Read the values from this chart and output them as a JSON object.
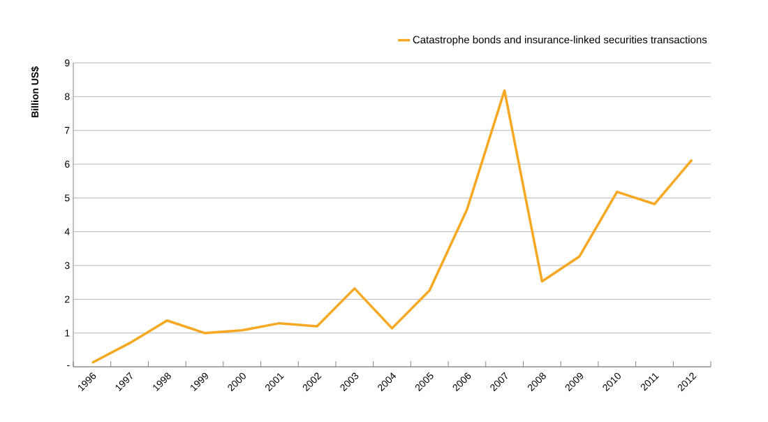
{
  "chart_data": {
    "type": "line",
    "ylabel": "Billion US$",
    "categories": [
      "1996",
      "1997",
      "1998",
      "1999",
      "2000",
      "2001",
      "2002",
      "2003",
      "2004",
      "2005",
      "2006",
      "2007",
      "2008",
      "2009",
      "2010",
      "2011",
      "2012"
    ],
    "series": [
      {
        "name": "Catastrophe bonds and insurance-linked securities transactions",
        "color": "#f7a823",
        "values": [
          0.12,
          0.7,
          1.37,
          1.0,
          1.08,
          1.29,
          1.2,
          2.32,
          1.14,
          2.26,
          4.66,
          8.18,
          2.53,
          3.27,
          5.18,
          4.82,
          6.13
        ]
      }
    ],
    "ylim": [
      0,
      9
    ],
    "yticks": [
      {
        "value": 0,
        "label": "-"
      },
      1,
      2,
      3,
      4,
      5,
      6,
      7,
      8,
      9
    ],
    "grid": "y",
    "legend": "top right",
    "marker": "none",
    "line_style": "solid"
  }
}
